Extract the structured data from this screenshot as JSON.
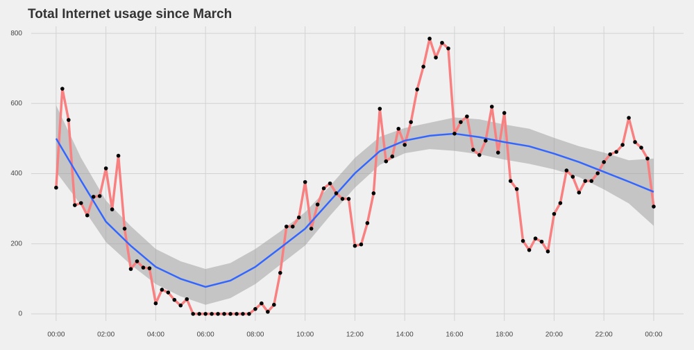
{
  "chart_data": {
    "type": "line",
    "title": "Total Internet usage since March",
    "x": [
      0,
      0.25,
      0.5,
      0.75,
      1,
      1.25,
      1.5,
      1.75,
      2,
      2.25,
      2.5,
      2.75,
      3,
      3.25,
      3.5,
      3.75,
      4,
      4.25,
      4.5,
      4.75,
      5,
      5.25,
      5.5,
      5.75,
      6,
      6.25,
      6.5,
      6.75,
      7,
      7.25,
      7.5,
      7.75,
      8,
      8.25,
      8.5,
      8.75,
      9,
      9.25,
      9.5,
      9.75,
      10,
      10.25,
      10.5,
      10.75,
      11,
      11.25,
      11.5,
      11.75,
      12,
      12.25,
      12.5,
      12.75,
      13,
      13.25,
      13.5,
      13.75,
      14,
      14.25,
      14.5,
      14.75,
      15,
      15.25,
      15.5,
      15.75,
      16,
      16.25,
      16.5,
      16.75,
      17,
      17.25,
      17.5,
      17.75,
      18,
      18.25,
      18.5,
      18.75,
      19,
      19.25,
      19.5,
      19.75,
      20,
      20.25,
      20.5,
      20.75,
      21,
      21.25,
      21.5,
      21.75,
      22,
      22.25,
      22.5,
      22.75,
      23,
      23.25,
      23.5,
      23.75,
      24
    ],
    "series": [
      {
        "color": "#f88080",
        "point_color": "#000000",
        "values": [
          360,
          642,
          553,
          310,
          316,
          281,
          334,
          336,
          415,
          298,
          451,
          243,
          128,
          150,
          132,
          130,
          30,
          69,
          61,
          40,
          24,
          42,
          0,
          0,
          0,
          0,
          0,
          0,
          0,
          0,
          0,
          0,
          14,
          30,
          6,
          26,
          117,
          249,
          249,
          275,
          376,
          243,
          312,
          358,
          372,
          344,
          328,
          328,
          194,
          198,
          259,
          344,
          585,
          435,
          449,
          528,
          482,
          547,
          640,
          705,
          785,
          731,
          773,
          757,
          514,
          547,
          563,
          468,
          453,
          494,
          591,
          460,
          573,
          379,
          356,
          208,
          182,
          215,
          206,
          178,
          285,
          316,
          409,
          391,
          346,
          379,
          379,
          401,
          433,
          455,
          462,
          482,
          559,
          490,
          474,
          443,
          306
        ]
      }
    ],
    "smooth": {
      "color": "#3366ff",
      "band_color": "#999999",
      "x": [
        0,
        1,
        2,
        3,
        4,
        5,
        6,
        7,
        8,
        9,
        10,
        11,
        12,
        13,
        14,
        15,
        16,
        17,
        18,
        19,
        20,
        21,
        22,
        23,
        24
      ],
      "values": [
        500,
        380,
        263,
        194,
        134,
        100,
        77,
        95,
        134,
        188,
        243,
        322,
        401,
        464,
        494,
        508,
        514,
        504,
        490,
        478,
        457,
        433,
        405,
        377,
        348
      ],
      "lower": [
        405,
        310,
        205,
        140,
        85,
        50,
        26,
        45,
        85,
        140,
        195,
        280,
        360,
        425,
        458,
        470,
        465,
        455,
        440,
        428,
        412,
        390,
        355,
        315,
        251
      ],
      "upper": [
        595,
        445,
        323,
        250,
        185,
        150,
        128,
        145,
        185,
        235,
        290,
        365,
        445,
        505,
        530,
        545,
        560,
        555,
        540,
        528,
        502,
        478,
        460,
        438,
        443
      ]
    },
    "xlim": [
      -1,
      25.2
    ],
    "xticks": [
      {
        "value": 0,
        "label": "00:00"
      },
      {
        "value": 2,
        "label": "02:00"
      },
      {
        "value": 4,
        "label": "04:00"
      },
      {
        "value": 6,
        "label": "06:00"
      },
      {
        "value": 8,
        "label": "08:00"
      },
      {
        "value": 10,
        "label": "10:00"
      },
      {
        "value": 12,
        "label": "12:00"
      },
      {
        "value": 14,
        "label": "14:00"
      },
      {
        "value": 16,
        "label": "16:00"
      },
      {
        "value": 18,
        "label": "18:00"
      },
      {
        "value": 20,
        "label": "20:00"
      },
      {
        "value": 22,
        "label": "22:00"
      },
      {
        "value": 24,
        "label": "00:00"
      }
    ],
    "ylim": [
      -20,
      820
    ],
    "yticks": [
      0,
      200,
      400,
      600,
      800
    ],
    "grid": true
  }
}
